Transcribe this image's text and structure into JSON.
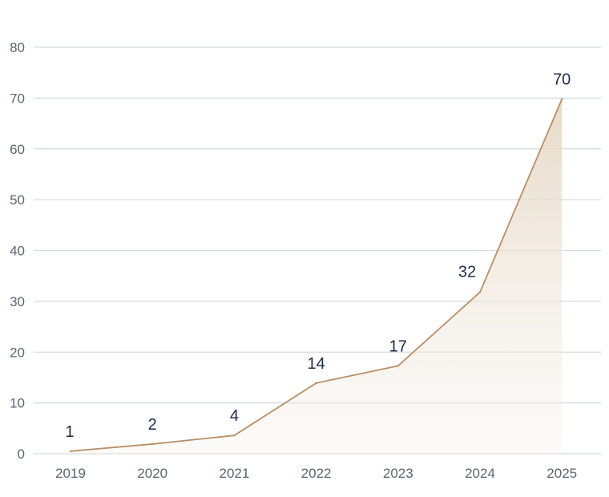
{
  "chart_data": {
    "type": "area",
    "title": "",
    "xlabel": "",
    "ylabel": "",
    "categories": [
      "2019",
      "2020",
      "2021",
      "2022",
      "2023",
      "2024",
      "2025"
    ],
    "values": [
      0.5,
      1.9,
      3.6,
      13.9,
      17.3,
      31.8,
      69.8
    ],
    "data_labels": [
      "1",
      "2",
      "4",
      "14",
      "17",
      "32",
      "70"
    ],
    "ylim": [
      0,
      80
    ],
    "yticks": [
      "0",
      "10",
      "20",
      "30",
      "40",
      "50",
      "60",
      "70",
      "80"
    ],
    "grid": true,
    "line_color": "#b88f66",
    "fill_color": "#e8dccd"
  }
}
